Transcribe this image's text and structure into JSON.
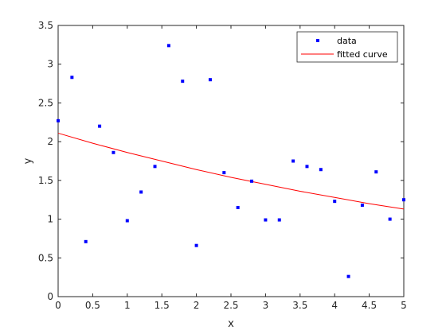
{
  "chart_data": {
    "type": "scatter",
    "xlabel": "x",
    "ylabel": "y",
    "xlim": [
      0,
      5
    ],
    "ylim": [
      0,
      3.5
    ],
    "xticks": [
      0,
      0.5,
      1,
      1.5,
      2,
      2.5,
      3,
      3.5,
      4,
      4.5,
      5
    ],
    "yticks": [
      0,
      0.5,
      1,
      1.5,
      2,
      2.5,
      3,
      3.5
    ],
    "xtick_labels": [
      "0",
      "0.5",
      "1",
      "1.5",
      "2",
      "2.5",
      "3",
      "3.5",
      "4",
      "4.5",
      "5"
    ],
    "ytick_labels": [
      "0",
      "0.5",
      "1",
      "1.5",
      "2",
      "2.5",
      "3",
      "3.5"
    ],
    "grid": false,
    "legend_position": "top-right",
    "series": [
      {
        "name": "data",
        "kind": "markers",
        "color": "#0000ff",
        "x": [
          0,
          0.2,
          0.4,
          0.6,
          0.8,
          1.0,
          1.2,
          1.4,
          1.6,
          1.8,
          2.0,
          2.2,
          2.4,
          2.6,
          2.8,
          3.0,
          3.2,
          3.4,
          3.6,
          3.8,
          4.0,
          4.2,
          4.4,
          4.6,
          4.8,
          5.0
        ],
        "y": [
          2.27,
          2.83,
          0.71,
          2.2,
          1.86,
          0.98,
          1.35,
          1.68,
          3.24,
          2.78,
          0.66,
          2.8,
          1.6,
          1.15,
          1.49,
          0.99,
          0.99,
          1.75,
          1.68,
          1.64,
          1.23,
          0.26,
          1.18,
          1.61,
          1.0,
          1.25
        ]
      },
      {
        "name": "fitted curve",
        "kind": "line",
        "color": "#ff0000",
        "x": [
          0,
          0.5,
          1.0,
          1.5,
          2.0,
          2.5,
          3.0,
          3.5,
          4.0,
          4.5,
          5.0
        ],
        "y": [
          2.11,
          1.98,
          1.86,
          1.75,
          1.64,
          1.54,
          1.45,
          1.36,
          1.28,
          1.2,
          1.13
        ]
      }
    ]
  }
}
